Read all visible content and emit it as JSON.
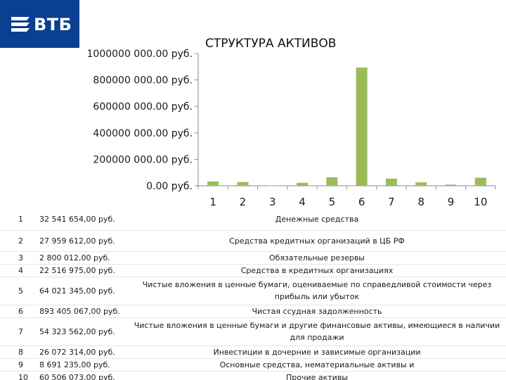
{
  "logo": {
    "text": "ВТБ"
  },
  "chart_data": {
    "type": "bar",
    "title": "СТРУКТУРА АКТИВОВ",
    "categories": [
      "1",
      "2",
      "3",
      "4",
      "5",
      "6",
      "7",
      "8",
      "9",
      "10"
    ],
    "values": [
      32541654,
      27959612,
      2800012,
      22516975,
      64021345,
      893405067,
      54323562,
      26072314,
      8691235,
      60506073
    ],
    "ylim": [
      0,
      1000000000
    ],
    "yticks": [
      0,
      200000000,
      400000000,
      600000000,
      800000000,
      1000000000
    ],
    "ytick_labels": [
      "0.00 руб.",
      "200000 000.00 руб.",
      "400000 000.00 руб.",
      "600000 000.00 руб.",
      "800000 000.00 руб.",
      "1000000 000.00 руб."
    ],
    "bar_color": "#9bbb59",
    "grid": false
  },
  "rows": [
    {
      "num": "1",
      "value": "32 541 654,00 руб.",
      "desc": "Денежные средства"
    },
    {
      "num": "2",
      "value": "27 959 612,00 руб.",
      "desc": "Средства кредитных организаций в ЦБ РФ"
    },
    {
      "num": "3",
      "value": "2 800 012,00 руб.",
      "desc": "Обязательные резервы"
    },
    {
      "num": "4",
      "value": "22 516 975,00 руб.",
      "desc": "Средства в кредитных организациях"
    },
    {
      "num": "5",
      "value": "64 021 345,00 руб.",
      "desc": "Чистые вложения в ценные бумаги, оцениваемые по справедливой стоимости через прибыль или убыток"
    },
    {
      "num": "6",
      "value": "893 405 067,00 руб.",
      "desc": "Чистая ссудная задолженность"
    },
    {
      "num": "7",
      "value": "54 323 562,00 руб.",
      "desc": "Чистые вложения в ценные бумаги и другие финансовые активы, имеющиеся в наличии для продажи"
    },
    {
      "num": "8",
      "value": "26 072 314,00 руб.",
      "desc": "Инвестиции в дочерние и зависимые организации"
    },
    {
      "num": "9",
      "value": "8 691 235,00 руб.",
      "desc": "Основные средства, нематериальные активы и"
    },
    {
      "num": "10",
      "value": "60 506 073,00 руб.",
      "desc": "Прочие активы"
    }
  ]
}
